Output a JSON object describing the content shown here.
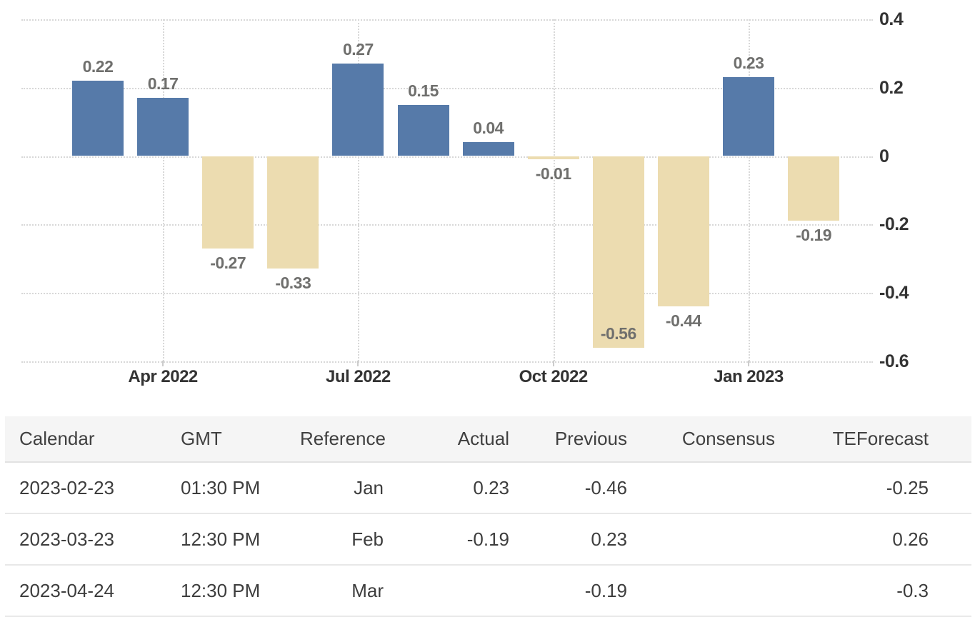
{
  "chart_data": {
    "type": "bar",
    "values": [
      0.22,
      0.17,
      -0.27,
      -0.33,
      0.27,
      0.15,
      0.04,
      -0.01,
      -0.56,
      -0.44,
      0.23,
      -0.19
    ],
    "point_labels": [
      "0.22",
      "0.17",
      "-0.27",
      "-0.33",
      "0.27",
      "0.15",
      "0.04",
      "-0.01",
      "-0.56",
      "-0.44",
      "0.23",
      "-0.19"
    ],
    "x_ticks": [
      {
        "label": "Apr 2022",
        "bar_index": 1
      },
      {
        "label": "Jul 2022",
        "bar_index": 4
      },
      {
        "label": "Oct 2022",
        "bar_index": 7
      },
      {
        "label": "Jan 2023",
        "bar_index": 10
      }
    ],
    "y_ticks": [
      0.4,
      0.2,
      0,
      -0.2,
      -0.4,
      -0.6
    ],
    "y_tick_labels": [
      "0.4",
      "0.2",
      "0",
      "-0.2",
      "-0.4",
      "-0.6"
    ],
    "ylim": [
      -0.6,
      0.4
    ],
    "grid": "dotted",
    "legend": "none",
    "title": "",
    "xlabel": "",
    "ylabel": "",
    "colors": {
      "positive_bar": "#567aa9",
      "negative_bar": "#ecdcb0",
      "gridline": "#d8d8d8",
      "data_label": "#6f6f6d",
      "axis_label": "#333333"
    }
  },
  "table": {
    "headers": [
      "Calendar",
      "GMT",
      "Reference",
      "Actual",
      "Previous",
      "Consensus",
      "TEForecast"
    ],
    "rows": [
      [
        "2023-02-23",
        "01:30 PM",
        "Jan",
        "0.23",
        "-0.46",
        "",
        "-0.25"
      ],
      [
        "2023-03-23",
        "12:30 PM",
        "Feb",
        "-0.19",
        "0.23",
        "",
        "0.26"
      ],
      [
        "2023-04-24",
        "12:30 PM",
        "Mar",
        "",
        "-0.19",
        "",
        "-0.3"
      ]
    ]
  }
}
